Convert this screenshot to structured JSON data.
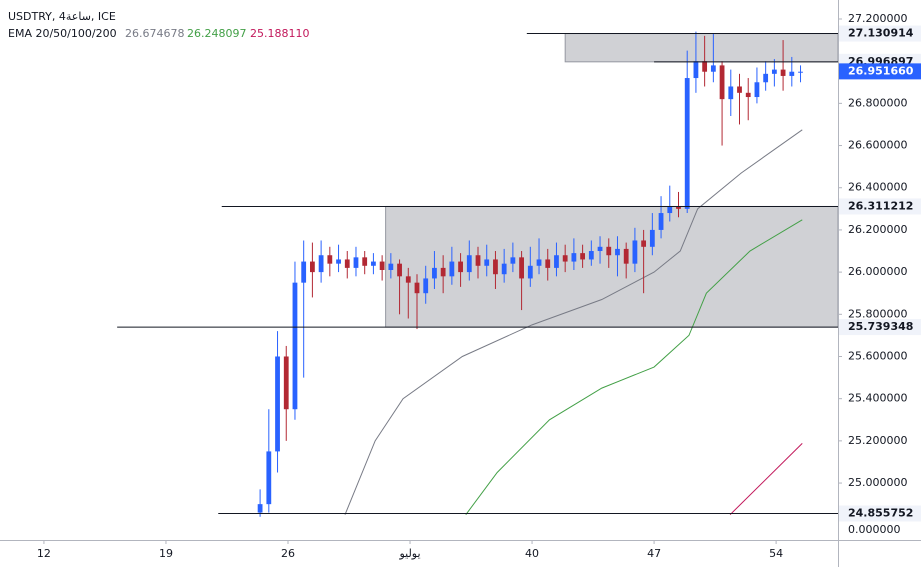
{
  "chart_data": {
    "type": "candlestick",
    "title": "USDTRY, 4ساعة, ICE",
    "indicator_label": "EMA 20/50/100/200",
    "up_color": "#2962ff",
    "down_color": "#b22833",
    "x": [
      24.4,
      24.9,
      25.4,
      25.9,
      26.4,
      26.9,
      27.4,
      27.9,
      28.4,
      28.9,
      29.4,
      29.9,
      30.4,
      30.9,
      31.4,
      31.9,
      32.4,
      32.9,
      33.4,
      33.9,
      34.4,
      34.9,
      35.4,
      35.9,
      36.4,
      36.9,
      37.4,
      37.9,
      38.4,
      38.9,
      39.4,
      39.9,
      40.4,
      40.9,
      41.4,
      41.9,
      42.4,
      42.9,
      43.4,
      43.9,
      44.4,
      44.9,
      45.4,
      45.9,
      46.4,
      46.9,
      47.4,
      47.9,
      48.4,
      48.9,
      49.4,
      49.9,
      50.4,
      50.9,
      51.4,
      51.9,
      52.4,
      52.9,
      53.4,
      53.9,
      54.4,
      54.9,
      55.4
    ],
    "open": [
      24.86,
      24.9,
      25.15,
      25.6,
      25.35,
      25.95,
      26.05,
      26.0,
      26.08,
      26.04,
      26.06,
      26.02,
      26.07,
      26.03,
      26.05,
      26.01,
      26.04,
      25.98,
      25.95,
      25.9,
      25.97,
      26.02,
      25.98,
      26.05,
      26.0,
      26.08,
      26.03,
      26.06,
      25.99,
      26.04,
      26.07,
      25.97,
      26.03,
      26.06,
      26.02,
      26.08,
      26.05,
      26.09,
      26.06,
      26.1,
      26.12,
      26.08,
      26.11,
      26.04,
      26.15,
      26.12,
      26.2,
      26.28,
      26.31,
      26.3,
      26.92,
      27.0,
      26.95,
      26.98,
      26.82,
      26.88,
      26.85,
      26.83,
      26.9,
      26.94,
      26.96,
      26.93,
      26.95
    ],
    "high": [
      24.97,
      25.35,
      25.72,
      25.65,
      26.05,
      26.15,
      26.14,
      26.15,
      26.12,
      26.13,
      26.1,
      26.12,
      26.1,
      26.09,
      26.08,
      26.09,
      26.06,
      26.02,
      25.99,
      26.03,
      26.1,
      26.08,
      26.12,
      26.09,
      26.15,
      26.12,
      26.13,
      26.1,
      26.11,
      26.14,
      26.1,
      26.12,
      26.16,
      26.11,
      26.14,
      26.13,
      26.16,
      26.13,
      26.15,
      26.17,
      26.16,
      26.17,
      26.14,
      26.21,
      26.2,
      26.28,
      26.36,
      26.41,
      26.38,
      27.05,
      27.14,
      27.12,
      27.13,
      27.0,
      26.96,
      26.94,
      26.92,
      26.97,
      27.0,
      27.01,
      27.1,
      27.02,
      26.98
    ],
    "low": [
      24.84,
      24.86,
      25.05,
      25.2,
      25.3,
      25.5,
      25.88,
      25.95,
      25.98,
      26.0,
      25.97,
      25.98,
      25.99,
      25.99,
      25.96,
      25.97,
      25.8,
      25.78,
      25.73,
      25.85,
      25.92,
      25.9,
      25.94,
      25.93,
      25.96,
      25.97,
      25.98,
      25.92,
      25.95,
      26.0,
      25.82,
      25.93,
      25.99,
      25.96,
      25.98,
      26.0,
      26.01,
      26.02,
      26.03,
      26.04,
      26.02,
      25.98,
      25.97,
      26.0,
      25.9,
      26.08,
      26.16,
      26.24,
      26.26,
      26.28,
      26.85,
      26.88,
      26.9,
      26.6,
      26.74,
      26.7,
      26.72,
      26.8,
      26.86,
      26.88,
      26.86,
      26.88,
      26.9
    ],
    "close": [
      24.9,
      25.15,
      25.6,
      25.35,
      25.95,
      26.05,
      26.0,
      26.08,
      26.04,
      26.06,
      26.02,
      26.07,
      26.03,
      26.05,
      26.01,
      26.04,
      25.98,
      25.95,
      25.9,
      25.97,
      26.02,
      25.98,
      26.05,
      26.0,
      26.08,
      26.03,
      26.06,
      25.99,
      26.04,
      26.07,
      25.97,
      26.03,
      26.06,
      26.02,
      26.08,
      26.05,
      26.09,
      26.06,
      26.1,
      26.12,
      26.08,
      26.11,
      26.04,
      26.15,
      26.12,
      26.2,
      26.28,
      26.31,
      26.3,
      26.92,
      27.0,
      26.95,
      26.98,
      26.82,
      26.88,
      26.85,
      26.83,
      26.9,
      26.94,
      26.96,
      26.93,
      26.95,
      26.95
    ],
    "indicators": [
      {
        "value": 26.674678,
        "color": "#787b86",
        "x": [
          29.27,
          31.0,
          32.6,
          36.0,
          40.0,
          44.0,
          47.0,
          48.5,
          49.5,
          52.0,
          55.5
        ],
        "values": [
          24.85,
          25.2,
          25.4,
          25.6,
          25.75,
          25.87,
          26.0,
          26.1,
          26.3,
          26.47,
          26.674678
        ]
      },
      {
        "value": 26.248097,
        "color": "#43a047",
        "x": [
          36.2,
          38.0,
          41.0,
          44.0,
          47.0,
          49.0,
          50.0,
          52.5,
          55.5
        ],
        "values": [
          24.85,
          25.05,
          25.3,
          25.45,
          25.55,
          25.7,
          25.9,
          26.1,
          26.248097
        ]
      },
      {
        "value": 25.18811,
        "value_label": "25.188110",
        "color": "#c2185b",
        "x": [
          51.36,
          55.5
        ],
        "values": [
          24.85,
          25.18811
        ]
      }
    ],
    "levels": [
      {
        "value": 27.130914,
        "start": 39.7
      },
      {
        "value": 26.996897,
        "start": 47.0
      },
      {
        "value": 26.311212,
        "start": 22.2
      },
      {
        "value": 25.739348,
        "start": 16.2
      },
      {
        "value": 24.855752,
        "start": 22.0
      }
    ],
    "zones": [
      {
        "ylim": [
          26.996897,
          27.130914
        ],
        "start": 41.9
      },
      {
        "ylim": [
          25.739348,
          26.311212
        ],
        "start": 31.6
      }
    ],
    "last_price": {
      "value": 26.95166,
      "label": "26.951660"
    },
    "xlim": [
      9.48,
      57.55
    ],
    "xticks": [
      12,
      19,
      26,
      {
        "value": 33,
        "label": "يوليو"
      },
      40,
      47,
      54
    ],
    "ylim": [
      24.73,
      27.29
    ],
    "yticks": [
      {
        "value": 25.0,
        "label": "25.000000"
      },
      {
        "value": 25.2,
        "label": "25.200000"
      },
      {
        "value": 25.4,
        "label": "25.400000"
      },
      {
        "value": 25.6,
        "label": "25.600000"
      },
      {
        "value": 25.8,
        "label": "25.800000"
      },
      {
        "value": 26.0,
        "label": "26.000000"
      },
      {
        "value": 26.2,
        "label": "26.200000"
      },
      {
        "value": 26.4,
        "label": "26.400000"
      },
      {
        "value": 26.6,
        "label": "26.600000"
      },
      {
        "value": 26.8,
        "label": "26.800000"
      },
      {
        "value": 27.0,
        "label": "27.000000"
      },
      {
        "value": 27.2,
        "label": "27.200000"
      }
    ],
    "axis_footer_label": "0.000000"
  }
}
